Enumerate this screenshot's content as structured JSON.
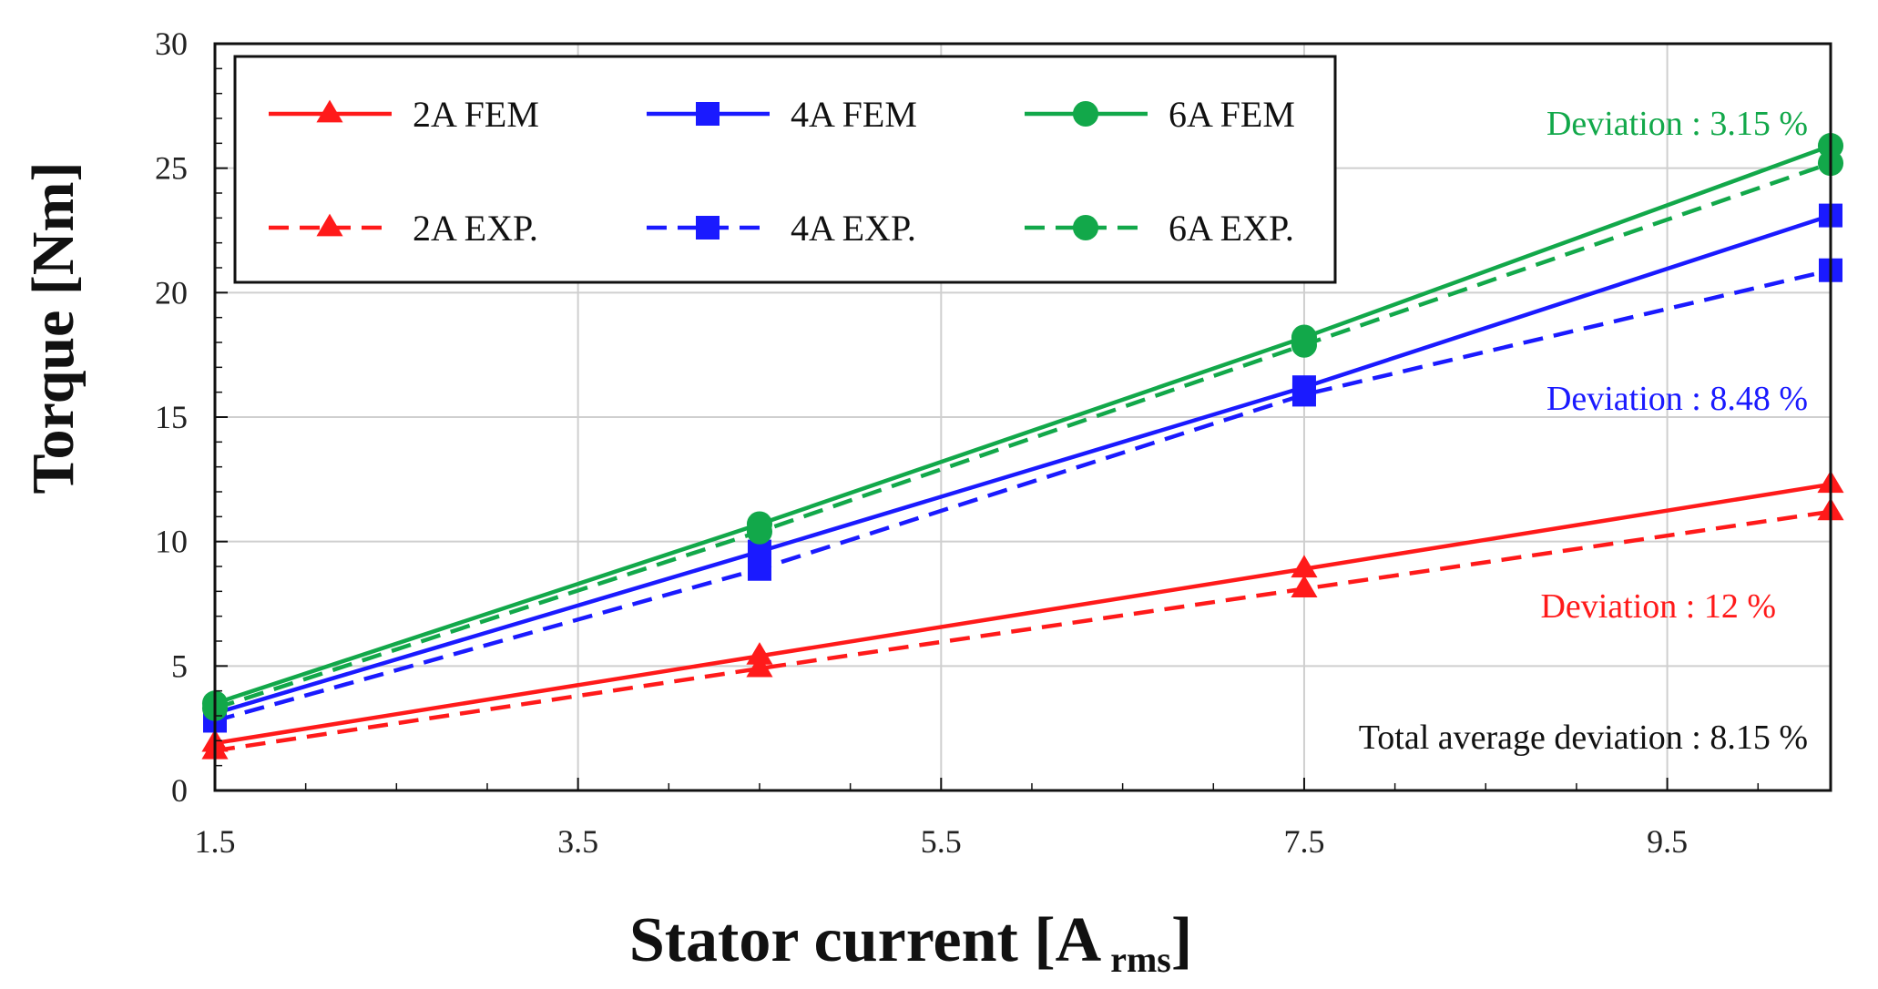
{
  "chart_data": {
    "type": "line",
    "title": "",
    "xlabel": "Stator current [A",
    "xlabel_subscript": "rms",
    "xlabel_close": "]",
    "ylabel": "Torque [Nm]",
    "xlim": [
      1.5,
      10.4
    ],
    "ylim": [
      0,
      30
    ],
    "x_ticks": [
      1.5,
      3.5,
      5.5,
      7.5,
      9.5
    ],
    "x_tick_labels": [
      "1.5",
      "3.5",
      "5.5",
      "7.5",
      "9.5"
    ],
    "y_ticks": [
      0,
      5,
      10,
      15,
      20,
      25,
      30
    ],
    "y_tick_labels": [
      "0",
      "5",
      "10",
      "15",
      "20",
      "25",
      "30"
    ],
    "grid": true,
    "legend_position": "top-left",
    "series": [
      {
        "name": "2A FEM",
        "color": "#ff1a1a",
        "marker": "triangle",
        "dash": "solid",
        "x": [
          1.5,
          4.5,
          7.5,
          10.4
        ],
        "values": [
          1.9,
          5.4,
          8.9,
          12.3
        ]
      },
      {
        "name": "4A FEM",
        "color": "#1a1aff",
        "marker": "square",
        "dash": "solid",
        "x": [
          1.5,
          4.5,
          7.5,
          10.4
        ],
        "values": [
          3.1,
          9.6,
          16.2,
          23.1
        ]
      },
      {
        "name": "6A FEM",
        "color": "#12a84a",
        "marker": "circle",
        "dash": "solid",
        "x": [
          1.5,
          4.5,
          7.5,
          10.4
        ],
        "values": [
          3.5,
          10.7,
          18.2,
          25.9
        ]
      },
      {
        "name": "2A EXP.",
        "color": "#ff1a1a",
        "marker": "triangle",
        "dash": "dashed",
        "x": [
          1.5,
          4.5,
          7.5,
          10.4
        ],
        "values": [
          1.6,
          4.9,
          8.1,
          11.2
        ]
      },
      {
        "name": "4A EXP.",
        "color": "#1a1aff",
        "marker": "square",
        "dash": "dashed",
        "x": [
          1.5,
          4.5,
          7.5,
          10.4
        ],
        "values": [
          2.8,
          8.9,
          15.9,
          20.9
        ]
      },
      {
        "name": "6A EXP.",
        "color": "#12a84a",
        "marker": "circle",
        "dash": "dashed",
        "x": [
          1.5,
          4.5,
          7.5,
          10.4
        ],
        "values": [
          3.3,
          10.4,
          17.9,
          25.2
        ]
      }
    ],
    "annotations": [
      {
        "text": "Deviation : 3.15 %",
        "color": "#12a84a"
      },
      {
        "text": "Deviation : 8.48 %",
        "color": "#1a1aff"
      },
      {
        "text": "Deviation : 12 %",
        "color": "#ff1a1a"
      },
      {
        "text": "Total average deviation : 8.15 %",
        "color": "#111111"
      }
    ]
  }
}
